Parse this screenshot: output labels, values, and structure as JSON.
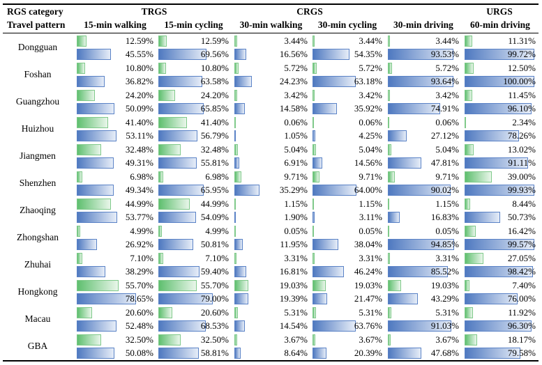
{
  "header": {
    "row1_label": "RGS category",
    "row2_label": "Travel pattern",
    "groups": [
      "TRGS",
      "CRGS",
      "URGS"
    ],
    "patterns": [
      "15-min walking",
      "15-min cycling",
      "30-min walking",
      "30-min cycling",
      "30-min driving",
      "60-min driving"
    ]
  },
  "colors": {
    "green_bar": "#5fbf6f",
    "blue_bar": "#4f79c0"
  },
  "chart_data": {
    "type": "table",
    "title": "",
    "columns": [
      "15-min walking",
      "15-min cycling",
      "30-min walking",
      "30-min cycling",
      "30-min driving",
      "60-min driving"
    ],
    "rows": [
      {
        "city": "Dongguan",
        "green": [
          "12.59%",
          "12.59%",
          "3.44%",
          "3.44%",
          "3.44%",
          "11.31%"
        ],
        "blue": [
          "45.55%",
          "69.56%",
          "16.56%",
          "54.35%",
          "93.53%",
          "99.72%"
        ]
      },
      {
        "city": "Foshan",
        "green": [
          "10.80%",
          "10.80%",
          "5.72%",
          "5.72%",
          "5.72%",
          "12.50%"
        ],
        "blue": [
          "36.82%",
          "63.58%",
          "24.23%",
          "63.18%",
          "93.64%",
          "100.00%"
        ]
      },
      {
        "city": "Guangzhou",
        "green": [
          "24.20%",
          "24.20%",
          "3.42%",
          "3.42%",
          "3.42%",
          "11.45%"
        ],
        "blue": [
          "50.09%",
          "65.85%",
          "14.58%",
          "35.92%",
          "74.91%",
          "96.10%"
        ]
      },
      {
        "city": "Huizhou",
        "green": [
          "41.40%",
          "41.40%",
          "0.06%",
          "0.06%",
          "0.06%",
          "2.34%"
        ],
        "blue": [
          "53.11%",
          "56.79%",
          "1.05%",
          "4.25%",
          "27.12%",
          "78.26%"
        ]
      },
      {
        "city": "Jiangmen",
        "green": [
          "32.48%",
          "32.48%",
          "5.04%",
          "5.04%",
          "5.04%",
          "13.02%"
        ],
        "blue": [
          "49.31%",
          "55.81%",
          "6.91%",
          "14.56%",
          "47.81%",
          "91.11%"
        ]
      },
      {
        "city": "Shenzhen",
        "green": [
          "6.98%",
          "6.98%",
          "9.71%",
          "9.71%",
          "9.71%",
          "39.00%"
        ],
        "blue": [
          "49.34%",
          "65.95%",
          "35.29%",
          "64.00%",
          "90.02%",
          "99.93%"
        ]
      },
      {
        "city": "Zhaoqing",
        "green": [
          "44.99%",
          "44.99%",
          "1.15%",
          "1.15%",
          "1.15%",
          "8.44%"
        ],
        "blue": [
          "53.77%",
          "54.09%",
          "1.90%",
          "3.11%",
          "16.83%",
          "50.73%"
        ]
      },
      {
        "city": "Zhongshan",
        "green": [
          "4.99%",
          "4.99%",
          "0.05%",
          "0.05%",
          "0.05%",
          "16.42%"
        ],
        "blue": [
          "26.92%",
          "50.81%",
          "11.95%",
          "38.04%",
          "94.85%",
          "99.57%"
        ]
      },
      {
        "city": "Zhuhai",
        "green": [
          "7.10%",
          "7.10%",
          "3.31%",
          "3.31%",
          "3.31%",
          "27.05%"
        ],
        "blue": [
          "38.29%",
          "59.40%",
          "16.81%",
          "46.24%",
          "85.52%",
          "98.42%"
        ]
      },
      {
        "city": "Hongkong",
        "green": [
          "55.70%",
          "55.70%",
          "19.03%",
          "19.03%",
          "19.03%",
          "7.40%"
        ],
        "blue": [
          "78.65%",
          "79.00%",
          "19.39%",
          "21.47%",
          "43.29%",
          "76.00%"
        ]
      },
      {
        "city": "Macau",
        "green": [
          "20.60%",
          "20.60%",
          "5.31%",
          "5.31%",
          "5.31%",
          "11.92%"
        ],
        "blue": [
          "52.48%",
          "68.53%",
          "14.54%",
          "63.76%",
          "91.03%",
          "96.30%"
        ]
      },
      {
        "city": "GBA",
        "green": [
          "32.50%",
          "32.50%",
          "3.67%",
          "3.67%",
          "3.67%",
          "18.17%"
        ],
        "blue": [
          "50.08%",
          "58.81%",
          "8.64%",
          "20.39%",
          "47.68%",
          "79.58%"
        ]
      }
    ]
  }
}
